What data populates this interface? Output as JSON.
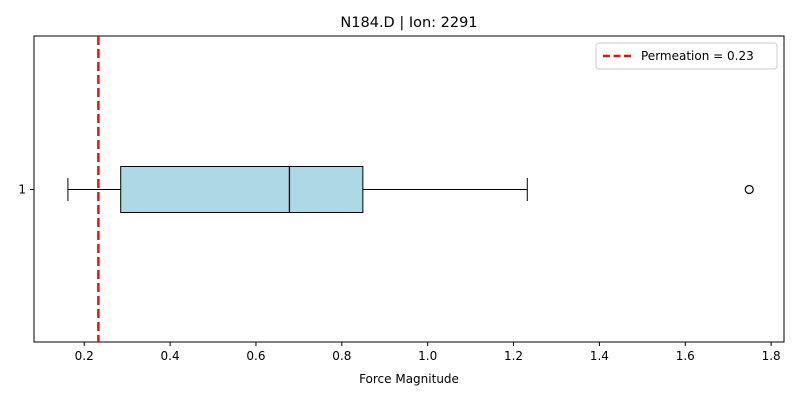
{
  "chart_data": {
    "type": "boxplot",
    "orientation": "horizontal",
    "title": "N184.D | Ion: 2291",
    "xlabel": "Force Magnitude",
    "ylabel": "",
    "xlim": [
      0.083,
      1.83
    ],
    "xticks": [
      0.2,
      0.4,
      0.6,
      0.8,
      1.0,
      1.2,
      1.4,
      1.6,
      1.8
    ],
    "xtick_labels": [
      "0.2",
      "0.4",
      "0.6",
      "0.8",
      "1.0",
      "1.2",
      "1.4",
      "1.6",
      "1.8"
    ],
    "categories": [
      "1"
    ],
    "box": {
      "whisker_low": 0.162,
      "q1": 0.285,
      "median": 0.678,
      "q3": 0.849,
      "whisker_high": 1.232,
      "outliers": [
        1.749
      ],
      "fill_color": "#add8e6",
      "edge_color": "#000000"
    },
    "reference_line": {
      "x": 0.233,
      "label": "Permeation = 0.23",
      "color": "#e8120c",
      "style": "dashed"
    },
    "legend": {
      "placement": "top-right"
    },
    "grid": false
  }
}
